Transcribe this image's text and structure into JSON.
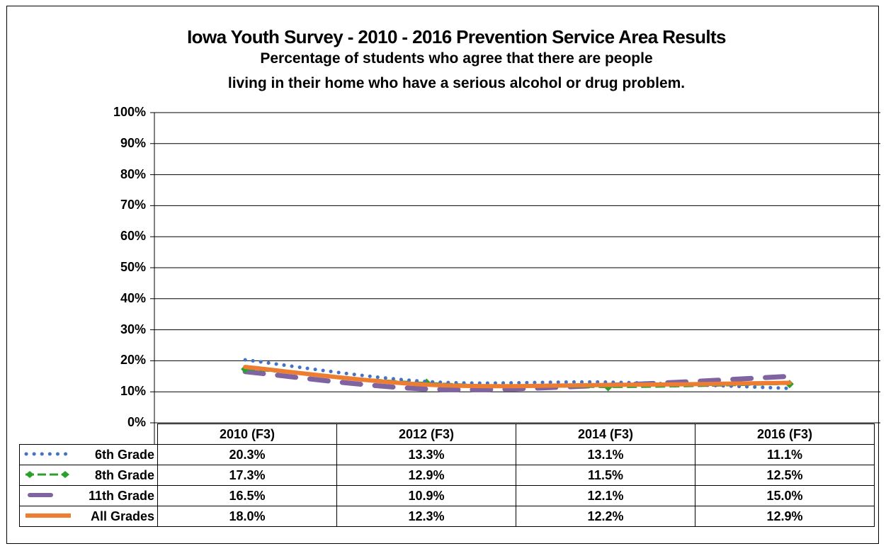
{
  "chart_data": {
    "type": "line",
    "title": "Iowa Youth Survey - 2010 - 2016 Prevention Service Area Results",
    "subtitle": [
      "Percentage of students who agree that there are people",
      "living in their home who have a serious alcohol or drug problem."
    ],
    "categories": [
      "2010 (F3)",
      "2012 (F3)",
      "2014 (F3)",
      "2016 (F3)"
    ],
    "ylim": [
      0,
      100
    ],
    "yticks": [
      "0%",
      "10%",
      "20%",
      "30%",
      "40%",
      "50%",
      "60%",
      "70%",
      "80%",
      "90%",
      "100%"
    ],
    "grid": true,
    "legend": "data-table",
    "series": [
      {
        "name": "6th Grade",
        "values": [
          20.3,
          13.3,
          13.1,
          11.1
        ],
        "labels": [
          "20.3%",
          "13.3%",
          "13.1%",
          "11.1%"
        ],
        "color": "#4472C4",
        "style": "dotted"
      },
      {
        "name": "8th Grade",
        "values": [
          17.3,
          12.9,
          11.5,
          12.5
        ],
        "labels": [
          "17.3%",
          "12.9%",
          "11.5%",
          "12.5%"
        ],
        "color": "#2CA02C",
        "style": "dashed-diamond"
      },
      {
        "name": "11th Grade",
        "values": [
          16.5,
          10.9,
          12.1,
          15.0
        ],
        "labels": [
          "16.5%",
          "10.9%",
          "12.1%",
          "15.0%"
        ],
        "color": "#8064A2",
        "style": "long-dash"
      },
      {
        "name": "All Grades",
        "values": [
          18.0,
          12.3,
          12.2,
          12.9
        ],
        "labels": [
          "18.0%",
          "12.3%",
          "12.2%",
          "12.9%"
        ],
        "color": "#ED7D31",
        "style": "solid"
      }
    ]
  }
}
